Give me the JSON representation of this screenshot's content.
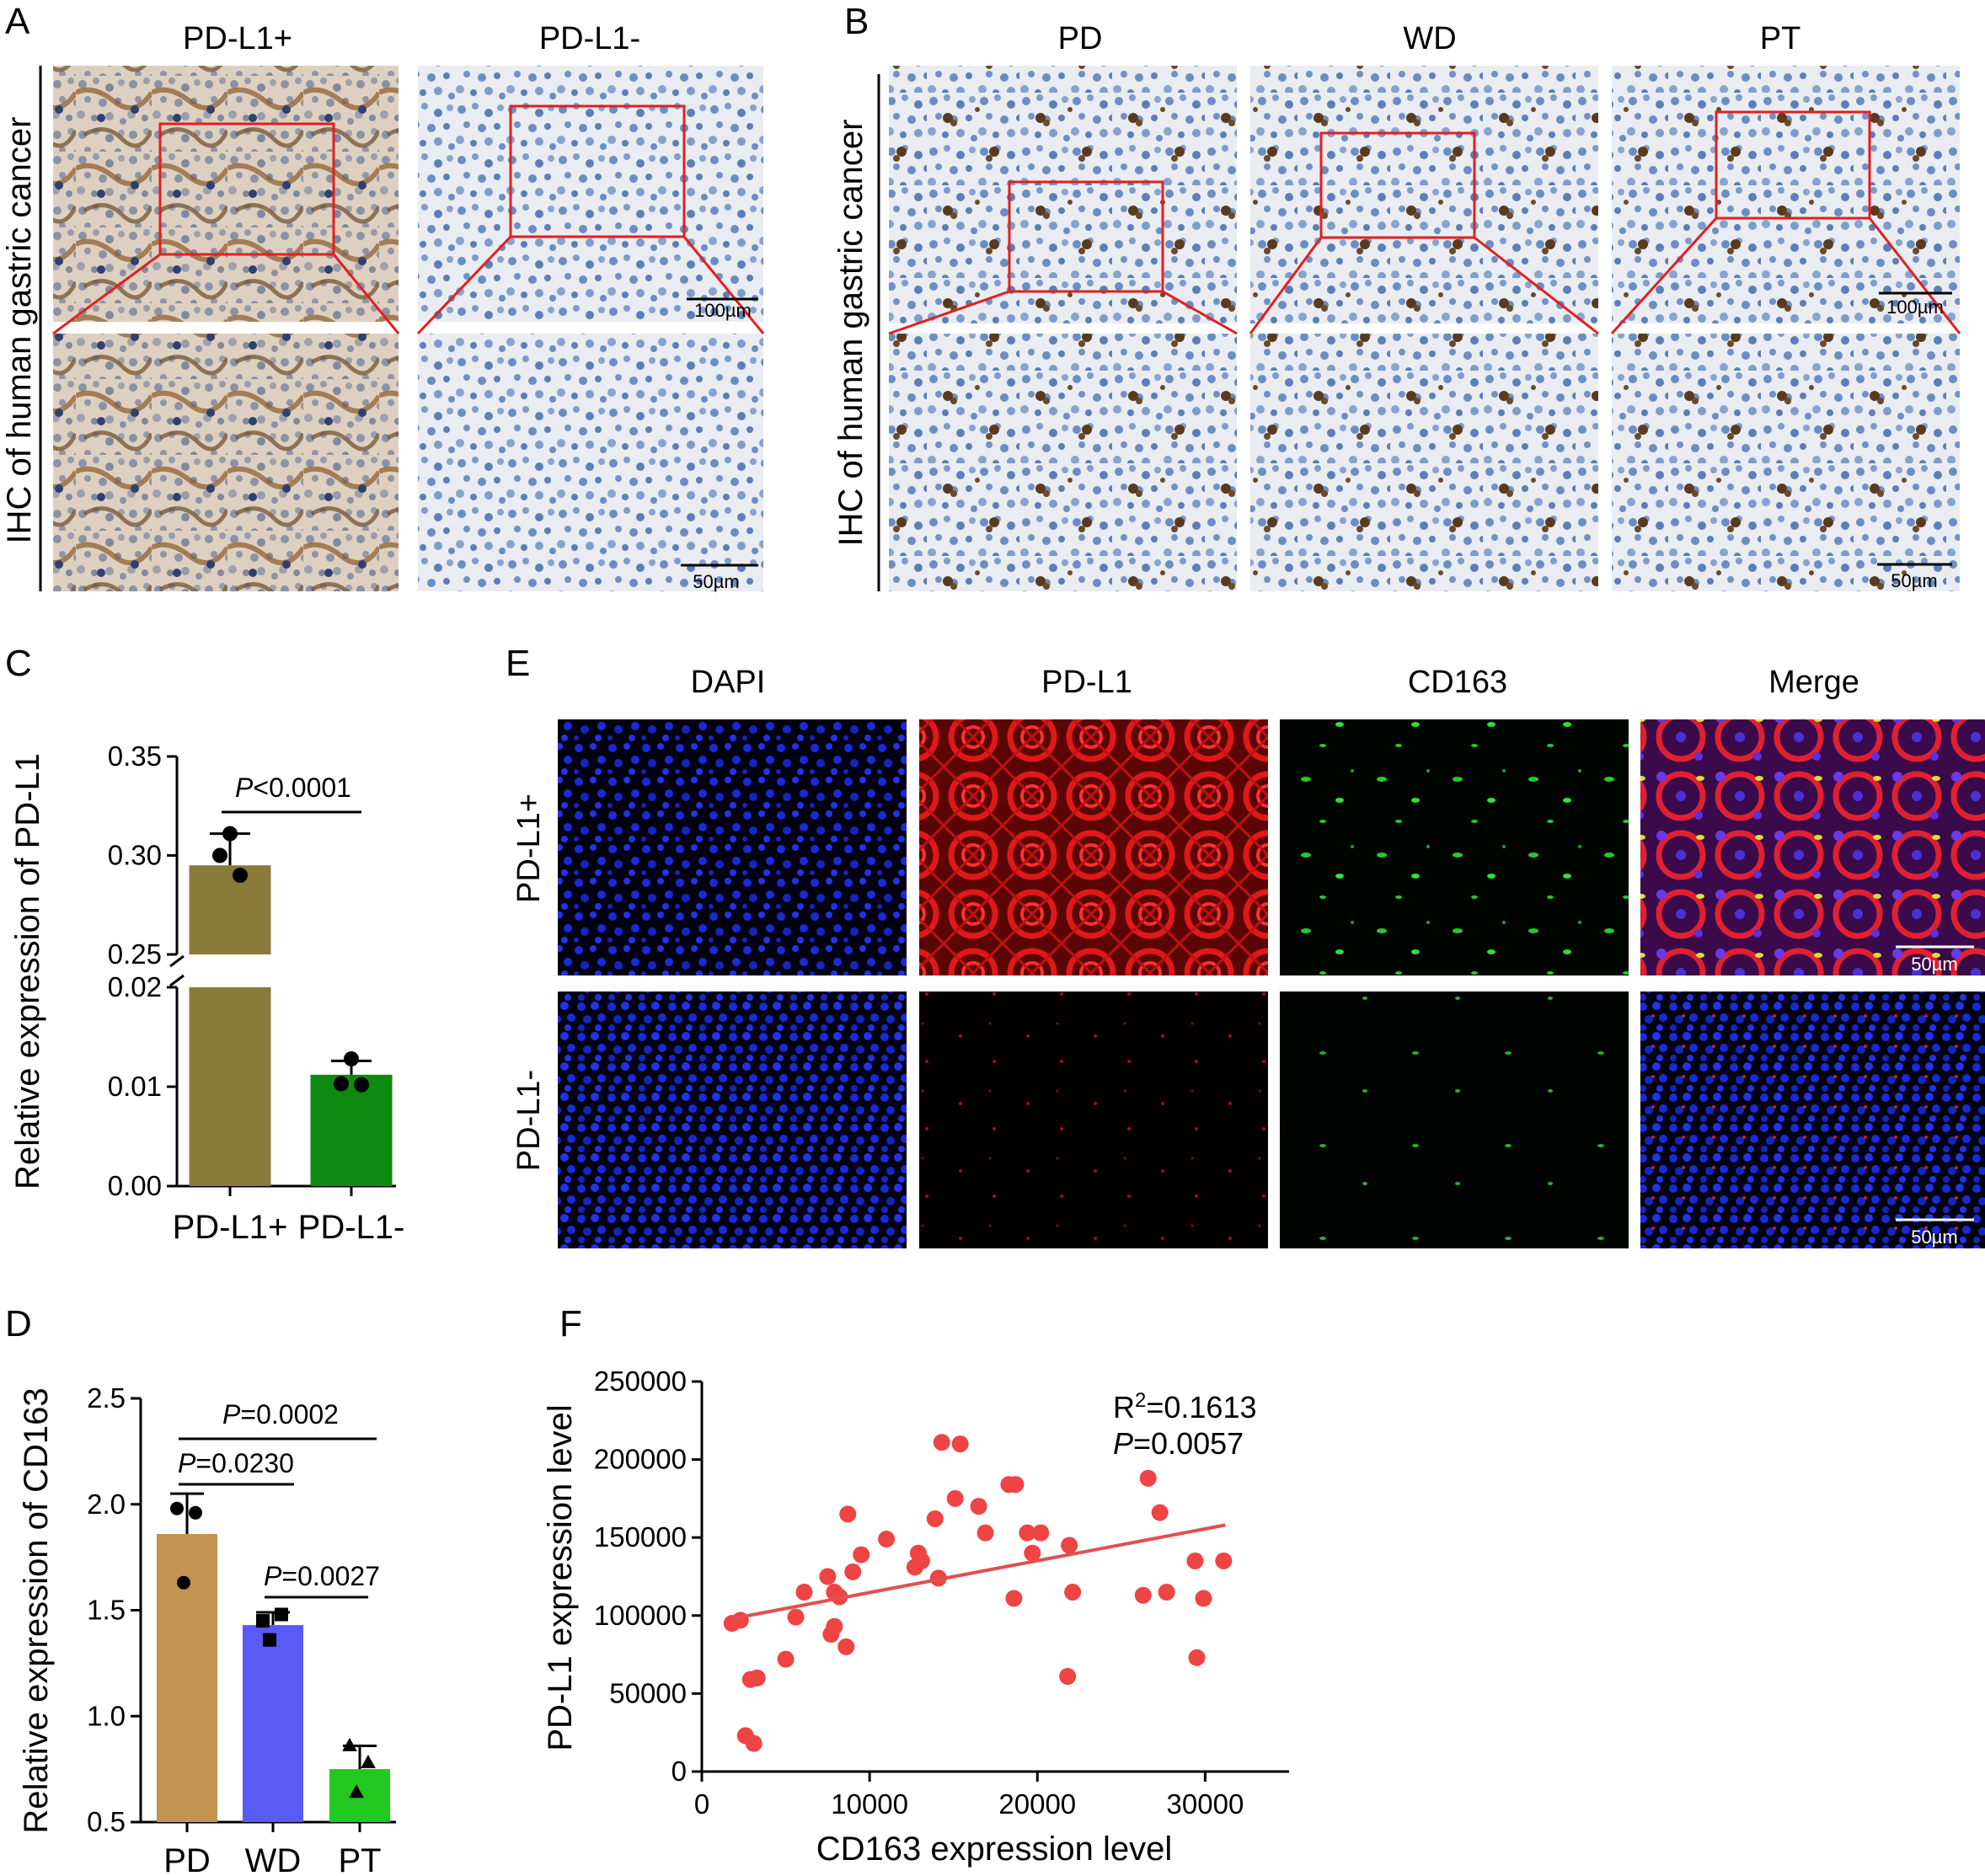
{
  "panels": {
    "A": {
      "letter": "A",
      "side_label": "IHC of human gastric cancer",
      "columns": [
        "PD-L1+",
        "PD-L1-"
      ],
      "scale_top": "100µm",
      "scale_bottom": "50µm"
    },
    "B": {
      "letter": "B",
      "side_label": "IHC of human gastric cancer",
      "columns": [
        "PD",
        "WD",
        "PT"
      ],
      "scale_top": "100µm",
      "scale_bottom": "50µm"
    },
    "C": {
      "letter": "C"
    },
    "D": {
      "letter": "D"
    },
    "E": {
      "letter": "E",
      "columns": [
        "DAPI",
        "PD-L1",
        "CD163",
        "Merge"
      ],
      "rows": [
        "PD-L1+",
        "PD-L1-"
      ],
      "scale": "50µm"
    },
    "F": {
      "letter": "F"
    }
  },
  "colors": {
    "ihc_background": "#e9ecf0",
    "ihc_nuclei": "#5b7fb8",
    "ihc_brown": "#6b4a2a",
    "roi_box": "#e02020",
    "dapi": "#1a2ad8",
    "pdl1": "#e01818",
    "cd163": "#28c828",
    "bar_c_pos": "#8a7a3a",
    "bar_c_neg": "#0f8a10",
    "bar_d_pd": "#c39350",
    "bar_d_wd": "#5a5af5",
    "bar_d_pt": "#20c820",
    "scatter": "#ee4444",
    "fit_line": "#e05050"
  },
  "chart_data": [
    {
      "id": "C",
      "type": "bar",
      "categories": [
        "PD-L1+",
        "PD-L1-"
      ],
      "values": [
        0.295,
        0.0112
      ],
      "errors": [
        0.016,
        0.0014
      ],
      "points": [
        [
          0.311,
          0.3,
          0.29
        ],
        [
          0.0128,
          0.0103,
          0.0102
        ]
      ],
      "ylabel": "Relative expression of PD-L1",
      "y_broken": true,
      "y_lower_range": [
        0,
        0.02
      ],
      "y_upper_range": [
        0.25,
        0.35
      ],
      "y_ticks_lower": [
        "0.00",
        "0.01",
        "0.02"
      ],
      "y_ticks_upper": [
        "0.25",
        "0.30",
        "0.35"
      ],
      "comparison": {
        "p_label": "P",
        "p_value": "<0.0001",
        "pair": [
          0,
          1
        ]
      }
    },
    {
      "id": "D",
      "type": "bar",
      "categories": [
        "PD",
        "WD",
        "PT"
      ],
      "values": [
        1.86,
        1.43,
        0.75
      ],
      "errors": [
        0.19,
        0.06,
        0.11
      ],
      "points": [
        [
          1.98,
          1.96,
          1.63
        ],
        [
          1.45,
          1.48,
          1.36
        ],
        [
          0.86,
          0.78,
          0.64
        ]
      ],
      "markers": [
        "circle",
        "square",
        "triangle"
      ],
      "ylabel": "Relative expression of CD163",
      "ylim": [
        0.5,
        2.5
      ],
      "y_ticks": [
        "0.5",
        "1.0",
        "1.5",
        "2.0",
        "2.5"
      ],
      "comparisons": [
        {
          "p_label": "P",
          "p_value": "=0.0002",
          "pair": [
            0,
            2
          ]
        },
        {
          "p_label": "P",
          "p_value": "=0.0230",
          "pair": [
            0,
            1
          ]
        },
        {
          "p_label": "P",
          "p_value": "=0.0027",
          "pair": [
            1,
            2
          ]
        }
      ]
    },
    {
      "id": "F",
      "type": "scatter",
      "xlabel": "CD163 expression level",
      "ylabel": "PD-L1 expression level",
      "xlim": [
        0,
        35000
      ],
      "ylim": [
        0,
        250000
      ],
      "x_ticks": [
        "0",
        "10000",
        "20000",
        "30000"
      ],
      "y_ticks": [
        "0",
        "50000",
        "100000",
        "150000",
        "200000",
        "250000"
      ],
      "r2_prefix": "R",
      "r2_sup": "2",
      "r2_value": "=0.1613",
      "p_label": "P",
      "p_value": "=0.0057",
      "fit": {
        "x0": 1800,
        "y0": 98000,
        "x1": 31200,
        "y1": 158000
      },
      "points": [
        [
          1800,
          95000
        ],
        [
          2300,
          97000
        ],
        [
          2600,
          23000
        ],
        [
          2900,
          59000
        ],
        [
          3100,
          18000
        ],
        [
          3300,
          60000
        ],
        [
          5000,
          72000
        ],
        [
          5600,
          99000
        ],
        [
          6100,
          115000
        ],
        [
          7500,
          125000
        ],
        [
          7700,
          88000
        ],
        [
          7900,
          93000
        ],
        [
          7900,
          115000
        ],
        [
          8200,
          112000
        ],
        [
          8600,
          80000
        ],
        [
          8700,
          165000
        ],
        [
          9000,
          128000
        ],
        [
          9500,
          139000
        ],
        [
          11000,
          149000
        ],
        [
          12700,
          131000
        ],
        [
          12900,
          140000
        ],
        [
          13100,
          135000
        ],
        [
          13900,
          162000
        ],
        [
          14100,
          124000
        ],
        [
          14300,
          211000
        ],
        [
          15100,
          175000
        ],
        [
          15400,
          210000
        ],
        [
          16500,
          170000
        ],
        [
          16900,
          153000
        ],
        [
          18300,
          184000
        ],
        [
          18600,
          111000
        ],
        [
          18700,
          184000
        ],
        [
          19400,
          153000
        ],
        [
          19700,
          140000
        ],
        [
          20200,
          153000
        ],
        [
          21800,
          61000
        ],
        [
          21900,
          145000
        ],
        [
          22100,
          115000
        ],
        [
          26300,
          113000
        ],
        [
          26600,
          188000
        ],
        [
          27300,
          166000
        ],
        [
          27700,
          115000
        ],
        [
          29400,
          135000
        ],
        [
          29500,
          73000
        ],
        [
          29900,
          111000
        ],
        [
          31100,
          135000
        ]
      ]
    }
  ]
}
